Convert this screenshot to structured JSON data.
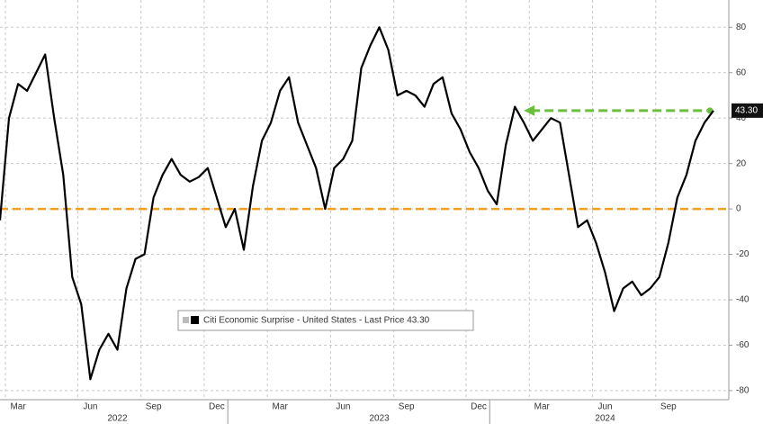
{
  "chart_data": {
    "type": "line",
    "categories": [
      null,
      null,
      "Mar",
      null,
      null,
      null,
      null,
      null,
      null,
      null,
      "Jun",
      null,
      null,
      null,
      null,
      null,
      null,
      "Sep",
      null,
      null,
      null,
      null,
      null,
      null,
      "Dec",
      null,
      null,
      null,
      null,
      null,
      null,
      "Mar",
      null,
      null,
      null,
      null,
      null,
      null,
      "Jun",
      null,
      null,
      null,
      null,
      null,
      null,
      "Sep",
      null,
      null,
      null,
      null,
      null,
      null,
      null,
      "Dec",
      null,
      null,
      null,
      null,
      null,
      null,
      "Mar",
      null,
      null,
      null,
      null,
      null,
      null,
      "Jun",
      null,
      null,
      null,
      null,
      null,
      null,
      "Sep",
      null,
      null,
      null,
      null,
      null
    ],
    "years": [
      "2022",
      "2023",
      "2024"
    ],
    "series": [
      {
        "name": "Citi Economic Surprise - United States - Last Price 43.30",
        "color": "#000000",
        "values": [
          -5,
          40,
          55,
          52,
          60,
          68,
          40,
          15,
          -30,
          -42,
          -75,
          -62,
          -55,
          -62,
          -35,
          -22,
          -20,
          5,
          15,
          22,
          15,
          12,
          14,
          18,
          5,
          -8,
          0,
          -18,
          10,
          30,
          38,
          52,
          58,
          38,
          28,
          18,
          0,
          18,
          22,
          30,
          62,
          72,
          80,
          70,
          50,
          52,
          50,
          45,
          55,
          58,
          42,
          35,
          25,
          18,
          8,
          2,
          28,
          45,
          38,
          30,
          35,
          40,
          38,
          15,
          -8,
          -5,
          -15,
          -28,
          -45,
          -35,
          -32,
          -38,
          -35,
          -30,
          -15,
          5,
          15,
          30,
          38,
          43.3
        ],
        "last_label": "43.30"
      }
    ],
    "reference_line": {
      "value": 0,
      "color": "#f0a020"
    },
    "arrow": {
      "value": 43.3,
      "color": "#6cbf3c"
    },
    "ylim": [
      -84,
      92
    ],
    "yticks": [
      -80,
      -60,
      -40,
      -20,
      0,
      20,
      40,
      60,
      80
    ],
    "grid": true
  }
}
